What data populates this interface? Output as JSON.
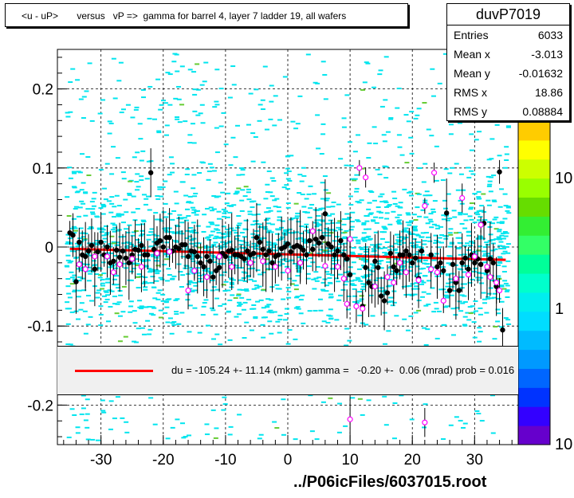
{
  "chart_data": {
    "type": "scatter",
    "title": "<u - uP>       versus   vP =>  gamma for barrel 4, layer 7 ladder 19, all wafers",
    "xlim": [
      -37,
      37
    ],
    "ylim": [
      -0.25,
      0.25
    ],
    "x_ticks": [
      -30,
      -20,
      -10,
      0,
      10,
      20,
      30
    ],
    "y_ticks": [
      -0.2,
      -0.1,
      0,
      0.1,
      0.2
    ],
    "grid": true,
    "z_axis": {
      "scale": "log",
      "ticks": [
        "1",
        "10"
      ],
      "bottom_label": "10"
    },
    "fit": {
      "x": [
        -35,
        35
      ],
      "y": [
        -0.0023,
        -0.0163
      ],
      "color": "#ff0000"
    },
    "profile_black": [
      [
        -35,
        0.018
      ],
      [
        -34.5,
        0.015
      ],
      [
        -34,
        -0.044
      ],
      [
        -33.5,
        0.006
      ],
      [
        -33,
        -0.01
      ],
      [
        -32.5,
        -0.012
      ],
      [
        -32,
        -0.005
      ],
      [
        -31.5,
        0.002
      ],
      [
        -31,
        -0.028
      ],
      [
        -30.5,
        -0.006
      ],
      [
        -30,
        0.006
      ],
      [
        -29.5,
        -0.01
      ],
      [
        -29,
        0.0
      ],
      [
        -28.5,
        -0.02
      ],
      [
        -28,
        -0.018
      ],
      [
        -27.5,
        -0.004
      ],
      [
        -27,
        -0.013
      ],
      [
        -26.5,
        -0.005
      ],
      [
        -26,
        -0.014
      ],
      [
        -25.5,
        -0.02
      ],
      [
        -25,
        -0.01
      ],
      [
        -24.5,
        -0.003
      ],
      [
        -24,
        -0.004
      ],
      [
        -23.5,
        0.002
      ],
      [
        -23,
        -0.01
      ],
      [
        -22.5,
        -0.01
      ],
      [
        -22,
        0.094
      ],
      [
        -21.5,
        -0.003
      ],
      [
        -21,
        0.005
      ],
      [
        -20.5,
        0.008
      ],
      [
        -20,
        0.0
      ],
      [
        -19.5,
        0.012
      ],
      [
        -19,
        0.012
      ],
      [
        -18.5,
        -0.005
      ],
      [
        -18,
        0.0
      ],
      [
        -17.5,
        -0.002
      ],
      [
        -17,
        0.003
      ],
      [
        -16.5,
        0.003
      ],
      [
        -16,
        -0.012
      ],
      [
        -15.5,
        -0.005
      ],
      [
        -15,
        -0.006
      ],
      [
        -14.5,
        -0.012
      ],
      [
        -14,
        -0.02
      ],
      [
        -13.5,
        -0.025
      ],
      [
        -13,
        -0.012
      ],
      [
        -12.5,
        -0.018
      ],
      [
        -12,
        -0.038
      ],
      [
        -11.5,
        -0.03
      ],
      [
        -11,
        -0.026
      ],
      [
        -10.5,
        -0.008
      ],
      [
        -10,
        -0.012
      ],
      [
        -9.5,
        -0.005
      ],
      [
        -9,
        -0.004
      ],
      [
        -8.5,
        -0.01
      ],
      [
        -8,
        -0.01
      ],
      [
        -7.5,
        -0.012
      ],
      [
        -7,
        -0.015
      ],
      [
        -6.5,
        -0.005
      ],
      [
        -6,
        -0.01
      ],
      [
        -5.5,
        -0.008
      ],
      [
        -5,
        0.012
      ],
      [
        -4.5,
        0.006
      ],
      [
        -4,
        -0.003
      ],
      [
        -3.5,
        -0.01
      ],
      [
        -3,
        -0.005
      ],
      [
        -2.5,
        -0.02
      ],
      [
        -2,
        -0.012
      ],
      [
        -1.5,
        -0.01
      ],
      [
        -1,
        -0.002
      ],
      [
        -0.5,
        0.0
      ],
      [
        0,
        0.004
      ],
      [
        0.5,
        -0.006
      ],
      [
        1,
        0.0
      ],
      [
        1.5,
        0.002
      ],
      [
        2,
        0.0
      ],
      [
        2.5,
        -0.004
      ],
      [
        3,
        -0.01
      ],
      [
        3.5,
        0.008
      ],
      [
        4,
        -0.003
      ],
      [
        4.5,
        0.01
      ],
      [
        5,
        0.005
      ],
      [
        5.5,
        0.012
      ],
      [
        6,
        0.042
      ],
      [
        6.5,
        0.004
      ],
      [
        7,
        0.0
      ],
      [
        7.5,
        -0.01
      ],
      [
        8,
        -0.005
      ],
      [
        8.5,
        0.008
      ],
      [
        9,
        -0.01
      ],
      [
        9.5,
        -0.015
      ],
      [
        10,
        -0.035
      ],
      [
        12,
        -0.075
      ],
      [
        12.5,
        -0.026
      ],
      [
        13,
        -0.045
      ],
      [
        13.5,
        -0.05
      ],
      [
        14,
        -0.018
      ],
      [
        14.5,
        -0.026
      ],
      [
        15,
        -0.062
      ],
      [
        15.5,
        -0.068
      ],
      [
        16,
        -0.058
      ],
      [
        16.5,
        -0.008
      ],
      [
        17,
        -0.025
      ],
      [
        17.5,
        -0.03
      ],
      [
        18,
        -0.01
      ],
      [
        18.5,
        -0.01
      ],
      [
        19,
        -0.005
      ],
      [
        19.5,
        -0.01
      ],
      [
        20,
        -0.02
      ],
      [
        20.5,
        -0.014
      ],
      [
        21,
        -0.04
      ],
      [
        21.5,
        -0.005
      ],
      [
        23,
        -0.01
      ],
      [
        24,
        -0.025
      ],
      [
        24.5,
        -0.02
      ],
      [
        25,
        -0.03
      ],
      [
        25.5,
        0.043
      ],
      [
        26,
        -0.055
      ],
      [
        26.5,
        -0.022
      ],
      [
        27,
        -0.045
      ],
      [
        27.5,
        -0.055
      ],
      [
        28,
        -0.02
      ],
      [
        28.5,
        -0.014
      ],
      [
        29,
        -0.028
      ],
      [
        29.5,
        -0.01
      ],
      [
        30,
        -0.02
      ],
      [
        30.5,
        -0.015
      ],
      [
        31,
        -0.022
      ],
      [
        31.5,
        0.03
      ],
      [
        32,
        -0.03
      ],
      [
        32.5,
        -0.015
      ],
      [
        33,
        -0.02
      ],
      [
        33.5,
        -0.05
      ],
      [
        34,
        0.095
      ],
      [
        34.5,
        -0.105
      ]
    ],
    "profile_magenta": [
      [
        -33.5,
        -0.022
      ],
      [
        -32.5,
        -0.028
      ],
      [
        -31,
        -0.012
      ],
      [
        -29,
        -0.012
      ],
      [
        -28,
        -0.032
      ],
      [
        -27,
        -0.022
      ],
      [
        -25,
        -0.015
      ],
      [
        -23.5,
        -0.025
      ],
      [
        -21,
        -0.008
      ],
      [
        -19,
        -0.006
      ],
      [
        -16,
        -0.055
      ],
      [
        -15,
        -0.03
      ],
      [
        -13,
        -0.038
      ],
      [
        -11,
        -0.012
      ],
      [
        -9,
        -0.025
      ],
      [
        -6,
        -0.02
      ],
      [
        -4,
        -0.018
      ],
      [
        -2,
        -0.025
      ],
      [
        0,
        -0.03
      ],
      [
        2,
        -0.02
      ],
      [
        4,
        0.02
      ],
      [
        6,
        -0.024
      ],
      [
        8,
        -0.025
      ],
      [
        9,
        -0.04
      ],
      [
        9.5,
        -0.072
      ],
      [
        10,
        0.01
      ],
      [
        11,
        -0.075
      ],
      [
        11.5,
        0.1
      ],
      [
        12,
        -0.078
      ],
      [
        12.5,
        0.088
      ],
      [
        14,
        -0.05
      ],
      [
        16,
        -0.038
      ],
      [
        17,
        -0.045
      ],
      [
        18,
        -0.02
      ],
      [
        19,
        -0.032
      ],
      [
        21,
        -0.042
      ],
      [
        22,
        0.052
      ],
      [
        23,
        -0.028
      ],
      [
        23.5,
        0.094
      ],
      [
        24,
        -0.032
      ],
      [
        25,
        -0.068
      ],
      [
        27,
        -0.04
      ],
      [
        28,
        0.062
      ],
      [
        29,
        -0.035
      ],
      [
        30,
        -0.012
      ],
      [
        31,
        0.028
      ],
      [
        32,
        -0.025
      ],
      [
        32.5,
        -0.038
      ],
      [
        33.5,
        -0.045
      ],
      [
        34,
        -0.055
      ],
      [
        10,
        -0.218
      ],
      [
        22,
        -0.222
      ]
    ]
  },
  "labels": {
    "title": "<u - uP>       versus   vP =>  gamma for barrel 4, layer 7 ladder 19, all wafers",
    "x_ticks": [
      "-30",
      "-20",
      "-10",
      "0",
      "10",
      "20",
      "30"
    ],
    "y_ticks": [
      "0.2",
      "0.1",
      "0",
      "-0.1",
      "-0.2"
    ],
    "z_ticks": [
      "10",
      "1",
      "10"
    ],
    "filename": "../P06icFiles/6037015.root"
  },
  "stats": {
    "name": "duvP7019",
    "rows": [
      {
        "key": "Entries",
        "value": "6033"
      },
      {
        "key": "Mean x",
        "value": "-3.013"
      },
      {
        "key": "Mean y",
        "value": "-0.01632"
      },
      {
        "key": "RMS x",
        "value": "18.86"
      },
      {
        "key": "RMS y",
        "value": "0.08884"
      }
    ]
  },
  "fit_legend": {
    "text": "du = -105.24 +- 11.14 (mkm) gamma =   -0.20 +-  0.06 (mrad) prob = 0.016"
  },
  "colors": {
    "scatter_cyan": "#00e5ee",
    "scatter_green": "#66cc33",
    "fit_line": "#ff0000",
    "profile_black": "#000000",
    "profile_magenta": "#ff00ff",
    "palette": [
      "#6600cc",
      "#3300ff",
      "#0033ff",
      "#0066ff",
      "#0099ff",
      "#00bbff",
      "#00ddff",
      "#00eeee",
      "#00ffcc",
      "#00ff99",
      "#33ff66",
      "#33ee33",
      "#66dd00",
      "#99ff00",
      "#ccff00",
      "#ffff00",
      "#ffcc00"
    ]
  }
}
